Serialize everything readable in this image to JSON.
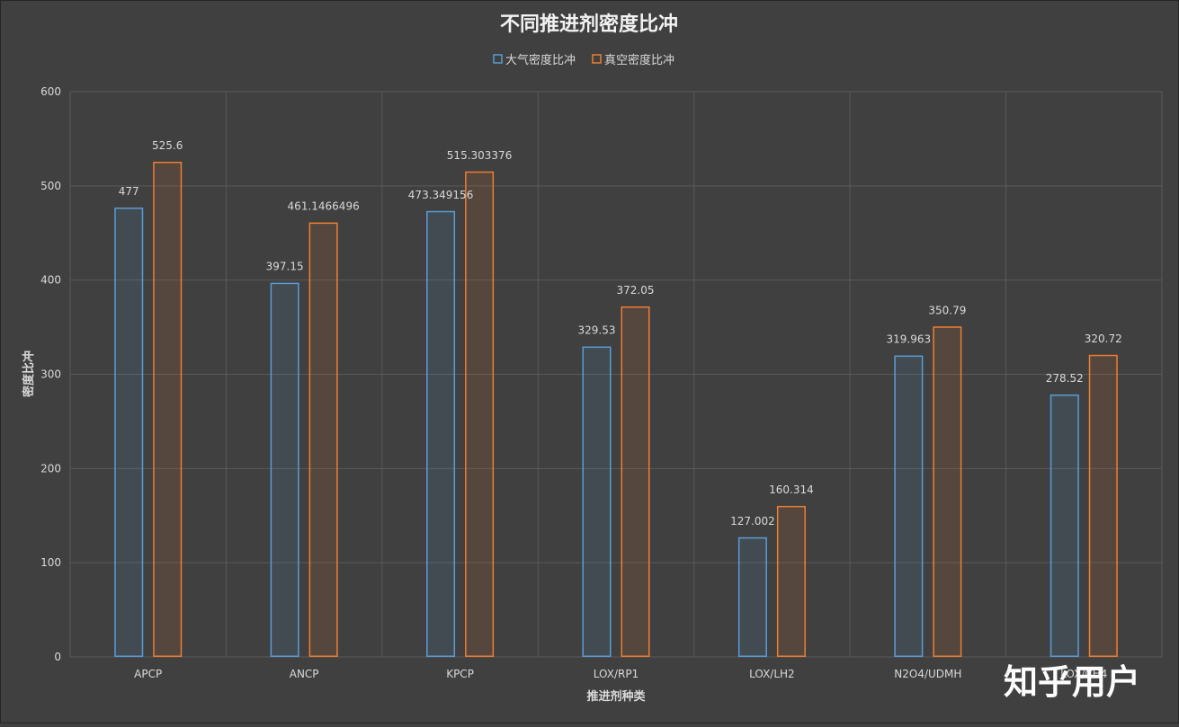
{
  "watermark": "知乎用户",
  "chart_data": {
    "type": "bar",
    "title": "不同推进剂密度比冲",
    "xlabel": "推进剂种类",
    "ylabel": "密度比冲",
    "ylim": [
      0,
      600
    ],
    "yticks": [
      0,
      100,
      200,
      300,
      400,
      500,
      600
    ],
    "categories": [
      "APCP",
      "ANCP",
      "KPCP",
      "LOX/RP1",
      "LOX/LH2",
      "N2O4/UDMH",
      "LOX/CH4"
    ],
    "series": [
      {
        "name": "大气密度比冲",
        "color": "#5b9bd5",
        "values": [
          477,
          397.15,
          473.349156,
          329.53,
          127.002,
          319.963,
          278.52
        ],
        "labels": [
          "477",
          "397.15",
          "473.349156",
          "329.53",
          "127.002",
          "319.963",
          "278.52"
        ]
      },
      {
        "name": "真空密度比冲",
        "color": "#ed7d31",
        "values": [
          525.6,
          461.1466496,
          515.303376,
          372.05,
          160.314,
          350.79,
          320.72
        ],
        "labels": [
          "525.6",
          "461.1466496",
          "515.303376",
          "372.05",
          "160.314",
          "350.79",
          "320.72"
        ]
      }
    ],
    "grid": true,
    "legend_position": "top",
    "colors": {
      "background": "#404040",
      "gridline": "#5a5a5a",
      "text": "#d9d9d9",
      "title": "#f2f2f2"
    }
  }
}
